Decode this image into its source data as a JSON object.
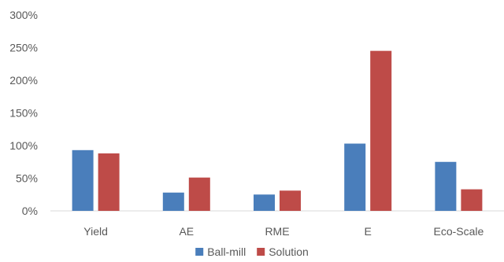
{
  "chart_data": {
    "type": "bar",
    "categories": [
      "Yield",
      "AE",
      "RME",
      "E",
      "Eco-Scale"
    ],
    "series": [
      {
        "name": "Ball-mill",
        "color": "#4a7ebb",
        "values": [
          93,
          28,
          25,
          103,
          75
        ]
      },
      {
        "name": "Solution",
        "color": "#be4b48",
        "values": [
          88,
          51,
          31,
          245,
          33
        ]
      }
    ],
    "y_unit": "%",
    "ylim": [
      0,
      300
    ],
    "y_ticks": [
      0,
      50,
      100,
      150,
      200,
      250,
      300
    ],
    "grid": false,
    "legend_position": "bottom"
  }
}
